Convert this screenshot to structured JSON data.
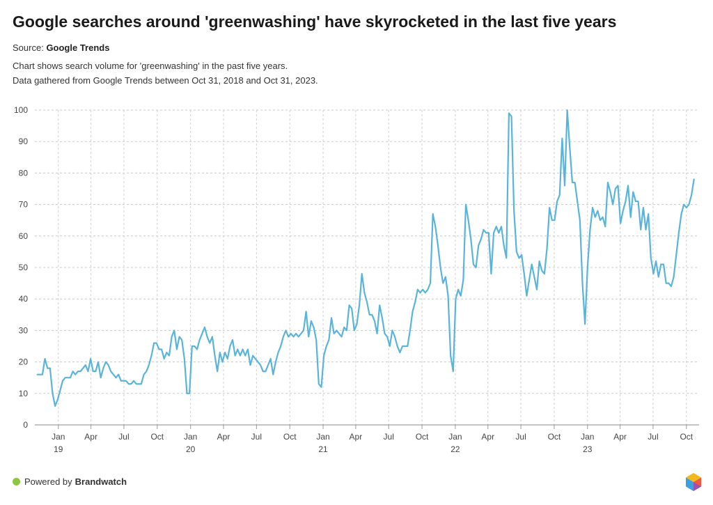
{
  "header": {
    "title": "Google searches around 'greenwashing' have skyrocketed in the last five years",
    "source_label": "Source:",
    "source_name": "Google Trends",
    "description_1": "Chart shows search volume for 'greenwashing' in the past five years.",
    "description_2": "Data gathered from Google Trends between Oct 31, 2018 and Oct 31, 2023."
  },
  "footer": {
    "powered_label": "Powered by",
    "brand": "Brandwatch",
    "dot_color": "#8dc63f"
  },
  "chart_data": {
    "type": "line",
    "title": "",
    "xlabel": "",
    "ylabel": "",
    "ylim": [
      0,
      100
    ],
    "yticks": [
      0,
      10,
      20,
      30,
      40,
      50,
      60,
      70,
      80,
      90,
      100
    ],
    "grid": true,
    "line_color": "#5ab4d9",
    "xticks": [
      {
        "date": "2019-01-01",
        "month": "Jan",
        "year": "19"
      },
      {
        "date": "2019-04-01",
        "month": "Apr",
        "year": ""
      },
      {
        "date": "2019-07-01",
        "month": "Jul",
        "year": ""
      },
      {
        "date": "2019-10-01",
        "month": "Oct",
        "year": ""
      },
      {
        "date": "2020-01-01",
        "month": "Jan",
        "year": "20"
      },
      {
        "date": "2020-04-01",
        "month": "Apr",
        "year": ""
      },
      {
        "date": "2020-07-01",
        "month": "Jul",
        "year": ""
      },
      {
        "date": "2020-10-01",
        "month": "Oct",
        "year": ""
      },
      {
        "date": "2021-01-01",
        "month": "Jan",
        "year": "21"
      },
      {
        "date": "2021-04-01",
        "month": "Apr",
        "year": ""
      },
      {
        "date": "2021-07-01",
        "month": "Jul",
        "year": ""
      },
      {
        "date": "2021-10-01",
        "month": "Oct",
        "year": ""
      },
      {
        "date": "2022-01-01",
        "month": "Jan",
        "year": "22"
      },
      {
        "date": "2022-04-01",
        "month": "Apr",
        "year": ""
      },
      {
        "date": "2022-07-01",
        "month": "Jul",
        "year": ""
      },
      {
        "date": "2022-10-01",
        "month": "Oct",
        "year": ""
      },
      {
        "date": "2023-01-01",
        "month": "Jan",
        "year": "23"
      },
      {
        "date": "2023-04-01",
        "month": "Apr",
        "year": ""
      },
      {
        "date": "2023-07-01",
        "month": "Jul",
        "year": ""
      },
      {
        "date": "2023-10-01",
        "month": "Oct",
        "year": ""
      }
    ],
    "series": [
      {
        "points": [
          [
            "2018-11-04",
            16
          ],
          [
            "2018-11-11",
            16
          ],
          [
            "2018-11-18",
            16
          ],
          [
            "2018-11-25",
            21
          ],
          [
            "2018-12-02",
            18
          ],
          [
            "2018-12-09",
            18
          ],
          [
            "2018-12-16",
            10
          ],
          [
            "2018-12-23",
            6
          ],
          [
            "2018-12-30",
            8
          ],
          [
            "2019-01-06",
            11
          ],
          [
            "2019-01-13",
            14
          ],
          [
            "2019-01-20",
            15
          ],
          [
            "2019-01-27",
            15
          ],
          [
            "2019-02-03",
            15
          ],
          [
            "2019-02-10",
            17
          ],
          [
            "2019-02-17",
            16
          ],
          [
            "2019-02-24",
            17
          ],
          [
            "2019-03-03",
            17
          ],
          [
            "2019-03-10",
            18
          ],
          [
            "2019-03-17",
            19
          ],
          [
            "2019-03-24",
            17
          ],
          [
            "2019-03-31",
            21
          ],
          [
            "2019-04-07",
            17
          ],
          [
            "2019-04-14",
            17
          ],
          [
            "2019-04-21",
            20
          ],
          [
            "2019-04-28",
            15
          ],
          [
            "2019-05-05",
            18
          ],
          [
            "2019-05-12",
            20
          ],
          [
            "2019-05-19",
            19
          ],
          [
            "2019-05-26",
            17
          ],
          [
            "2019-06-02",
            16
          ],
          [
            "2019-06-09",
            15
          ],
          [
            "2019-06-16",
            16
          ],
          [
            "2019-06-23",
            14
          ],
          [
            "2019-06-30",
            14
          ],
          [
            "2019-07-07",
            14
          ],
          [
            "2019-07-14",
            13
          ],
          [
            "2019-07-21",
            13
          ],
          [
            "2019-07-28",
            14
          ],
          [
            "2019-08-04",
            13
          ],
          [
            "2019-08-11",
            13
          ],
          [
            "2019-08-18",
            13
          ],
          [
            "2019-08-25",
            16
          ],
          [
            "2019-09-01",
            17
          ],
          [
            "2019-09-08",
            19
          ],
          [
            "2019-09-15",
            22
          ],
          [
            "2019-09-22",
            26
          ],
          [
            "2019-09-29",
            26
          ],
          [
            "2019-10-06",
            24
          ],
          [
            "2019-10-13",
            24
          ],
          [
            "2019-10-20",
            21
          ],
          [
            "2019-10-27",
            23
          ],
          [
            "2019-11-03",
            22
          ],
          [
            "2019-11-10",
            28
          ],
          [
            "2019-11-17",
            30
          ],
          [
            "2019-11-24",
            24
          ],
          [
            "2019-12-01",
            28
          ],
          [
            "2019-12-08",
            27
          ],
          [
            "2019-12-15",
            21
          ],
          [
            "2019-12-22",
            10
          ],
          [
            "2019-12-29",
            10
          ],
          [
            "2020-01-05",
            25
          ],
          [
            "2020-01-12",
            25
          ],
          [
            "2020-01-19",
            24
          ],
          [
            "2020-01-26",
            27
          ],
          [
            "2020-02-02",
            29
          ],
          [
            "2020-02-09",
            31
          ],
          [
            "2020-02-16",
            28
          ],
          [
            "2020-02-23",
            26
          ],
          [
            "2020-03-01",
            28
          ],
          [
            "2020-03-08",
            22
          ],
          [
            "2020-03-15",
            17
          ],
          [
            "2020-03-22",
            23
          ],
          [
            "2020-03-29",
            20
          ],
          [
            "2020-04-05",
            23
          ],
          [
            "2020-04-12",
            21
          ],
          [
            "2020-04-19",
            25
          ],
          [
            "2020-04-26",
            27
          ],
          [
            "2020-05-03",
            22
          ],
          [
            "2020-05-10",
            24
          ],
          [
            "2020-05-17",
            22
          ],
          [
            "2020-05-24",
            24
          ],
          [
            "2020-05-31",
            22
          ],
          [
            "2020-06-07",
            24
          ],
          [
            "2020-06-14",
            19
          ],
          [
            "2020-06-21",
            22
          ],
          [
            "2020-06-28",
            21
          ],
          [
            "2020-07-05",
            20
          ],
          [
            "2020-07-12",
            19
          ],
          [
            "2020-07-19",
            17
          ],
          [
            "2020-07-26",
            17
          ],
          [
            "2020-08-02",
            19
          ],
          [
            "2020-08-09",
            21
          ],
          [
            "2020-08-16",
            16
          ],
          [
            "2020-08-23",
            20
          ],
          [
            "2020-08-30",
            23
          ],
          [
            "2020-09-06",
            25
          ],
          [
            "2020-09-13",
            28
          ],
          [
            "2020-09-20",
            30
          ],
          [
            "2020-09-27",
            28
          ],
          [
            "2020-10-04",
            29
          ],
          [
            "2020-10-11",
            28
          ],
          [
            "2020-10-18",
            29
          ],
          [
            "2020-10-25",
            28
          ],
          [
            "2020-11-01",
            29
          ],
          [
            "2020-11-08",
            30
          ],
          [
            "2020-11-15",
            36
          ],
          [
            "2020-11-22",
            28
          ],
          [
            "2020-11-29",
            33
          ],
          [
            "2020-12-06",
            31
          ],
          [
            "2020-12-13",
            27
          ],
          [
            "2020-12-20",
            13
          ],
          [
            "2020-12-27",
            12
          ],
          [
            "2021-01-03",
            22
          ],
          [
            "2021-01-10",
            25
          ],
          [
            "2021-01-17",
            27
          ],
          [
            "2021-01-24",
            34
          ],
          [
            "2021-01-31",
            29
          ],
          [
            "2021-02-07",
            30
          ],
          [
            "2021-02-14",
            29
          ],
          [
            "2021-02-21",
            28
          ],
          [
            "2021-02-28",
            31
          ],
          [
            "2021-03-07",
            30
          ],
          [
            "2021-03-14",
            38
          ],
          [
            "2021-03-21",
            37
          ],
          [
            "2021-03-28",
            30
          ],
          [
            "2021-04-04",
            32
          ],
          [
            "2021-04-11",
            38
          ],
          [
            "2021-04-18",
            48
          ],
          [
            "2021-04-25",
            42
          ],
          [
            "2021-05-02",
            39
          ],
          [
            "2021-05-09",
            35
          ],
          [
            "2021-05-16",
            35
          ],
          [
            "2021-05-23",
            33
          ],
          [
            "2021-05-30",
            29
          ],
          [
            "2021-06-06",
            38
          ],
          [
            "2021-06-13",
            34
          ],
          [
            "2021-06-20",
            29
          ],
          [
            "2021-06-27",
            28
          ],
          [
            "2021-07-04",
            25
          ],
          [
            "2021-07-11",
            30
          ],
          [
            "2021-07-18",
            28
          ],
          [
            "2021-07-25",
            25
          ],
          [
            "2021-08-01",
            23
          ],
          [
            "2021-08-08",
            25
          ],
          [
            "2021-08-15",
            25
          ],
          [
            "2021-08-22",
            25
          ],
          [
            "2021-08-29",
            30
          ],
          [
            "2021-09-05",
            36
          ],
          [
            "2021-09-12",
            39
          ],
          [
            "2021-09-19",
            43
          ],
          [
            "2021-09-26",
            42
          ],
          [
            "2021-10-03",
            43
          ],
          [
            "2021-10-10",
            42
          ],
          [
            "2021-10-17",
            43
          ],
          [
            "2021-10-24",
            45
          ],
          [
            "2021-10-31",
            67
          ],
          [
            "2021-11-07",
            63
          ],
          [
            "2021-11-14",
            57
          ],
          [
            "2021-11-21",
            50
          ],
          [
            "2021-11-28",
            45
          ],
          [
            "2021-12-05",
            47
          ],
          [
            "2021-12-12",
            41
          ],
          [
            "2021-12-19",
            22
          ],
          [
            "2021-12-26",
            17
          ],
          [
            "2022-01-02",
            40
          ],
          [
            "2022-01-09",
            43
          ],
          [
            "2022-01-16",
            41
          ],
          [
            "2022-01-23",
            46
          ],
          [
            "2022-01-30",
            70
          ],
          [
            "2022-02-06",
            65
          ],
          [
            "2022-02-13",
            59
          ],
          [
            "2022-02-20",
            51
          ],
          [
            "2022-02-27",
            50
          ],
          [
            "2022-03-06",
            57
          ],
          [
            "2022-03-13",
            59
          ],
          [
            "2022-03-20",
            62
          ],
          [
            "2022-03-27",
            61
          ],
          [
            "2022-04-03",
            61
          ],
          [
            "2022-04-10",
            48
          ],
          [
            "2022-04-17",
            61
          ],
          [
            "2022-04-24",
            63
          ],
          [
            "2022-05-01",
            61
          ],
          [
            "2022-05-08",
            63
          ],
          [
            "2022-05-15",
            57
          ],
          [
            "2022-05-22",
            53
          ],
          [
            "2022-05-29",
            99
          ],
          [
            "2022-06-05",
            98
          ],
          [
            "2022-06-12",
            68
          ],
          [
            "2022-06-19",
            55
          ],
          [
            "2022-06-26",
            53
          ],
          [
            "2022-07-03",
            54
          ],
          [
            "2022-07-10",
            48
          ],
          [
            "2022-07-17",
            41
          ],
          [
            "2022-07-24",
            46
          ],
          [
            "2022-07-31",
            51
          ],
          [
            "2022-08-07",
            47
          ],
          [
            "2022-08-14",
            43
          ],
          [
            "2022-08-21",
            52
          ],
          [
            "2022-08-28",
            49
          ],
          [
            "2022-09-04",
            48
          ],
          [
            "2022-09-11",
            56
          ],
          [
            "2022-09-18",
            69
          ],
          [
            "2022-09-25",
            65
          ],
          [
            "2022-10-02",
            65
          ],
          [
            "2022-10-09",
            71
          ],
          [
            "2022-10-16",
            73
          ],
          [
            "2022-10-23",
            91
          ],
          [
            "2022-10-30",
            76
          ],
          [
            "2022-11-06",
            100
          ],
          [
            "2022-11-13",
            88
          ],
          [
            "2022-11-20",
            77
          ],
          [
            "2022-11-27",
            77
          ],
          [
            "2022-12-04",
            71
          ],
          [
            "2022-12-11",
            65
          ],
          [
            "2022-12-18",
            45
          ],
          [
            "2022-12-25",
            32
          ],
          [
            "2023-01-01",
            50
          ],
          [
            "2023-01-08",
            62
          ],
          [
            "2023-01-15",
            69
          ],
          [
            "2023-01-22",
            66
          ],
          [
            "2023-01-29",
            68
          ],
          [
            "2023-02-05",
            65
          ],
          [
            "2023-02-12",
            66
          ],
          [
            "2023-02-19",
            63
          ],
          [
            "2023-02-26",
            77
          ],
          [
            "2023-03-05",
            74
          ],
          [
            "2023-03-12",
            70
          ],
          [
            "2023-03-19",
            75
          ],
          [
            "2023-03-26",
            76
          ],
          [
            "2023-04-02",
            64
          ],
          [
            "2023-04-09",
            68
          ],
          [
            "2023-04-16",
            71
          ],
          [
            "2023-04-23",
            76
          ],
          [
            "2023-04-30",
            66
          ],
          [
            "2023-05-07",
            74
          ],
          [
            "2023-05-14",
            71
          ],
          [
            "2023-05-21",
            71
          ],
          [
            "2023-05-28",
            62
          ],
          [
            "2023-06-04",
            69
          ],
          [
            "2023-06-11",
            62
          ],
          [
            "2023-06-18",
            67
          ],
          [
            "2023-06-25",
            53
          ],
          [
            "2023-07-02",
            48
          ],
          [
            "2023-07-09",
            52
          ],
          [
            "2023-07-16",
            47
          ],
          [
            "2023-07-23",
            51
          ],
          [
            "2023-07-30",
            51
          ],
          [
            "2023-08-06",
            45
          ],
          [
            "2023-08-13",
            45
          ],
          [
            "2023-08-20",
            44
          ],
          [
            "2023-08-27",
            47
          ],
          [
            "2023-09-03",
            54
          ],
          [
            "2023-09-10",
            61
          ],
          [
            "2023-09-17",
            67
          ],
          [
            "2023-09-24",
            70
          ],
          [
            "2023-10-01",
            69
          ],
          [
            "2023-10-08",
            70
          ],
          [
            "2023-10-15",
            73
          ],
          [
            "2023-10-22",
            78
          ]
        ]
      }
    ]
  }
}
